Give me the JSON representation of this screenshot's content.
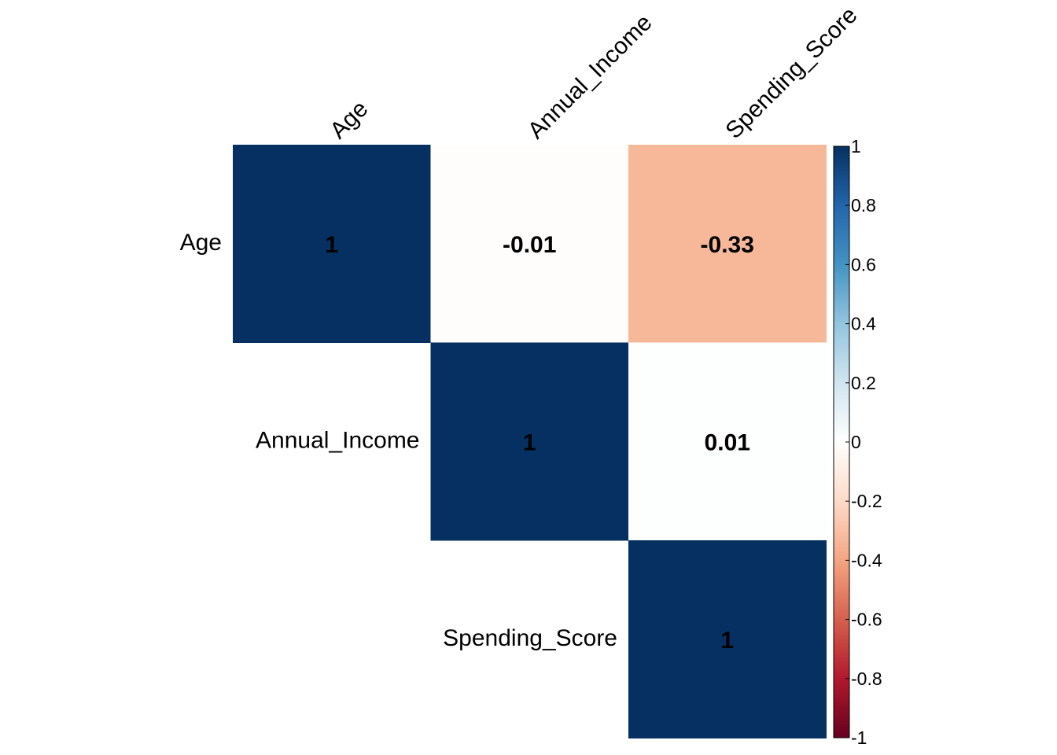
{
  "chart_data": {
    "type": "heatmap",
    "variant": "correlation-matrix-upper",
    "variables": [
      "Age",
      "Annual_Income",
      "Spending_Score"
    ],
    "cells": [
      {
        "row": "Age",
        "col": "Age",
        "value": 1,
        "label": "1"
      },
      {
        "row": "Age",
        "col": "Annual_Income",
        "value": -0.01,
        "label": "-0.01"
      },
      {
        "row": "Age",
        "col": "Spending_Score",
        "value": -0.33,
        "label": "-0.33"
      },
      {
        "row": "Annual_Income",
        "col": "Annual_Income",
        "value": 1,
        "label": "1"
      },
      {
        "row": "Annual_Income",
        "col": "Spending_Score",
        "value": 0.01,
        "label": "0.01"
      },
      {
        "row": "Spending_Score",
        "col": "Spending_Score",
        "value": 1,
        "label": "1"
      }
    ],
    "colorbar": {
      "range": [
        -1,
        1
      ],
      "ticks": [
        1,
        0.8,
        0.6,
        0.4,
        0.2,
        0,
        -0.2,
        -0.4,
        -0.6,
        -0.8,
        -1
      ],
      "tick_labels": [
        "1",
        "0.8",
        "0.6",
        "0.4",
        "0.2",
        "0",
        "-0.2",
        "-0.4",
        "-0.6",
        "-0.8",
        "-1"
      ],
      "palette": [
        "#67001F",
        "#B2182B",
        "#D6604D",
        "#F4A582",
        "#FDDBC7",
        "#FFFFFF",
        "#D1E5F0",
        "#92C5DE",
        "#4393C3",
        "#2166AC",
        "#053061"
      ],
      "placement": "right"
    }
  }
}
